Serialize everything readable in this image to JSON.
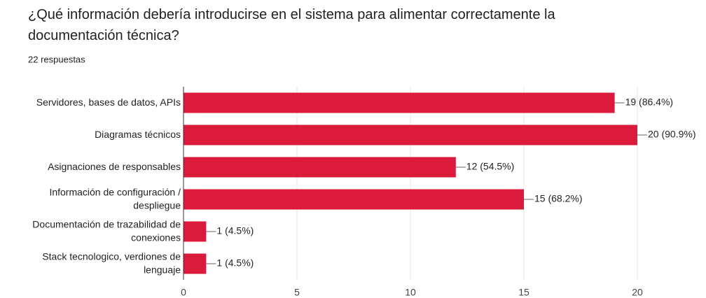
{
  "chart_data": {
    "type": "bar",
    "orientation": "horizontal",
    "title": "¿Qué información debería introducirse en el sistema para alimentar correctamente la documentación técnica?",
    "subtitle": "22 respuestas",
    "categories": [
      "Servidores, bases de datos, APIs",
      "Diagramas técnicos",
      "Asignaciones de responsables",
      "Información de configuración / despliegue",
      "Documentación de trazabilidad de conexiones",
      "Stack tecnologico, verdiones de lenguaje"
    ],
    "values": [
      19,
      20,
      12,
      15,
      1,
      1
    ],
    "value_labels": [
      "19 (86.4%)",
      "20 (90.9%)",
      "12 (54.5%)",
      "15 (68.2%)",
      "1 (4.5%)",
      "1 (4.5%)"
    ],
    "color": "#dc1a3c",
    "xlim": [
      0,
      20
    ],
    "xticks": [
      0,
      5,
      10,
      15,
      20
    ],
    "grid": true
  }
}
